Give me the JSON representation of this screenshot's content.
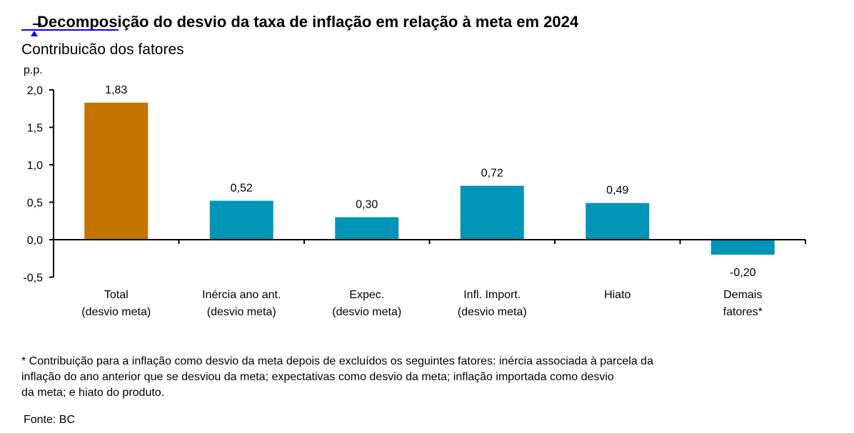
{
  "header": {
    "title": "Decomposição do desvio da taxa de inflação em relação à meta em 2024",
    "subtitle": "Contribuicão dos fatores",
    "unit": "p.p."
  },
  "colors": {
    "total": "#C27600",
    "factor": "#0095B6",
    "axis": "#000000",
    "selection": "#0000FF"
  },
  "chart_data": {
    "type": "bar",
    "title": "Decomposição do desvio da taxa de inflação em relação à meta em 2024",
    "subtitle": "Contribuicão dos fatores",
    "ylabel": "p.p.",
    "xlabel": "",
    "ylim": [
      -0.5,
      2.0
    ],
    "yticks": [
      -0.5,
      0.0,
      0.5,
      1.0,
      1.5,
      2.0
    ],
    "ytick_labels": [
      "-0,5",
      "0,0",
      "0,5",
      "1,0",
      "1,5",
      "2,0"
    ],
    "grid": false,
    "legend": "none",
    "categories": [
      [
        "Total",
        "(desvio meta)"
      ],
      [
        "Inércia ano ant.",
        "(desvio meta)"
      ],
      [
        "Expec.",
        "(desvio meta)"
      ],
      [
        "Infl. Import.",
        "(desvio meta)"
      ],
      [
        "Hiato"
      ],
      [
        "Demais",
        "fatores*"
      ]
    ],
    "values": [
      1.83,
      0.52,
      0.3,
      0.72,
      0.49,
      -0.2
    ],
    "value_labels": [
      "1,83",
      "0,52",
      "0,30",
      "0,72",
      "0,49",
      "-0,20"
    ],
    "bar_color_keys": [
      "total",
      "factor",
      "factor",
      "factor",
      "factor",
      "factor"
    ]
  },
  "footnote": {
    "lines": [
      "* Contribuição para a inflação como desvio da meta depois de excluídos os seguintes fatores: inércia associada à parcela da",
      "inflação do ano anterior que se desviou da meta; expectativas como desvio da meta; inflação importada como desvio",
      "da meta; e hiato do produto."
    ]
  },
  "source": "Fonte: BC"
}
